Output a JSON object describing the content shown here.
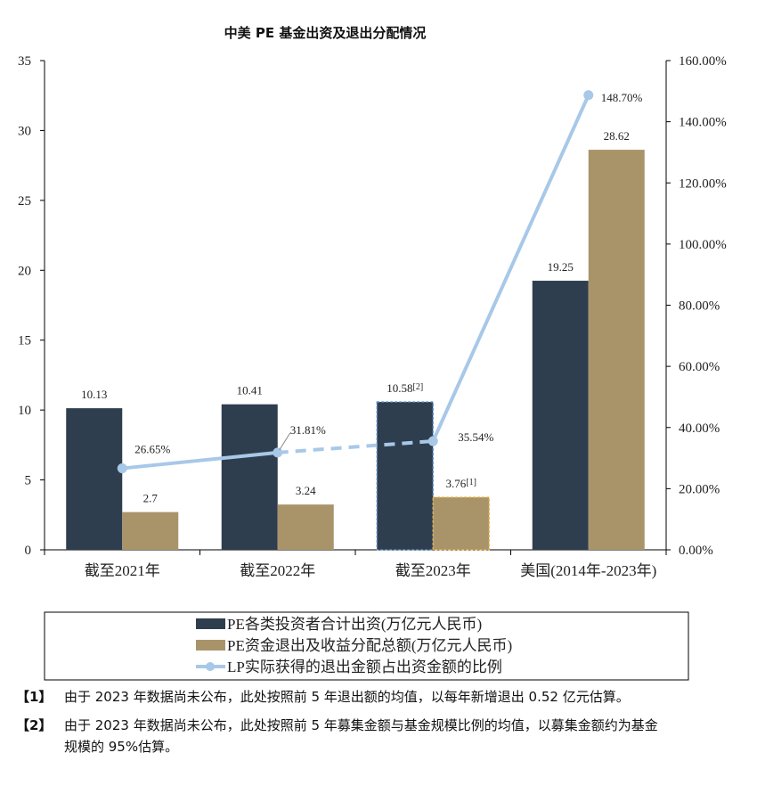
{
  "chart_data": {
    "type": "bar",
    "title": "中美 PE 基金出资及退出分配情况",
    "categories": [
      "截至2021年",
      "截至2022年",
      "截至2023年",
      "美国(2014年-2023年)"
    ],
    "series": [
      {
        "name": "PE各类投资者合计出资(万亿元人民币)",
        "type": "bar",
        "axis": "left",
        "color": "#2e3e4e",
        "values": [
          10.13,
          10.41,
          10.58,
          19.25
        ],
        "labels": [
          "10.13",
          "10.41",
          "10.58",
          "19.25"
        ],
        "label_suffix": [
          "",
          "",
          "[2]",
          ""
        ]
      },
      {
        "name": "PE资金退出及收益分配总额(万亿元人民币)",
        "type": "bar",
        "axis": "right",
        "color": "#a9946a",
        "values": [
          2.7,
          3.24,
          3.76,
          28.62
        ],
        "labels": [
          "2.7",
          "3.24",
          "3.76",
          "28.62"
        ],
        "label_suffix": [
          "",
          "",
          "[1]",
          ""
        ]
      },
      {
        "name": "LP实际获得的退出金额占出资金额的比例",
        "type": "line",
        "axis": "right",
        "color": "#a8c8e8",
        "values": [
          26.65,
          31.81,
          35.54,
          148.7
        ],
        "labels": [
          "26.65%",
          "31.81%",
          "35.54%",
          "148.70%"
        ],
        "dashed_segment_index": 1
      }
    ],
    "left_axis": {
      "min": 0,
      "max": 35,
      "ticks": [
        "0",
        "5",
        "10",
        "15",
        "20",
        "25",
        "30",
        "35"
      ]
    },
    "right_axis": {
      "min": 0,
      "max": 160,
      "ticks": [
        "0.00%",
        "20.00%",
        "40.00%",
        "60.00%",
        "80.00%",
        "100.00%",
        "120.00%",
        "140.00%",
        "160.00%"
      ]
    },
    "estimated_category_index": 2,
    "grid": false,
    "legend_position": "bottom"
  },
  "notes": [
    {
      "mark": "【1】",
      "text": "由于 2023 年数据尚未公布，此处按照前 5 年退出额的均值，以每年新增退出 0.52 亿元估算。"
    },
    {
      "mark": "【2】",
      "text": "由于 2023 年数据尚未公布，此处按照前 5 年募集金额与基金规模比例的均值，以募集金额约为基金规模的 95%估算。"
    }
  ]
}
